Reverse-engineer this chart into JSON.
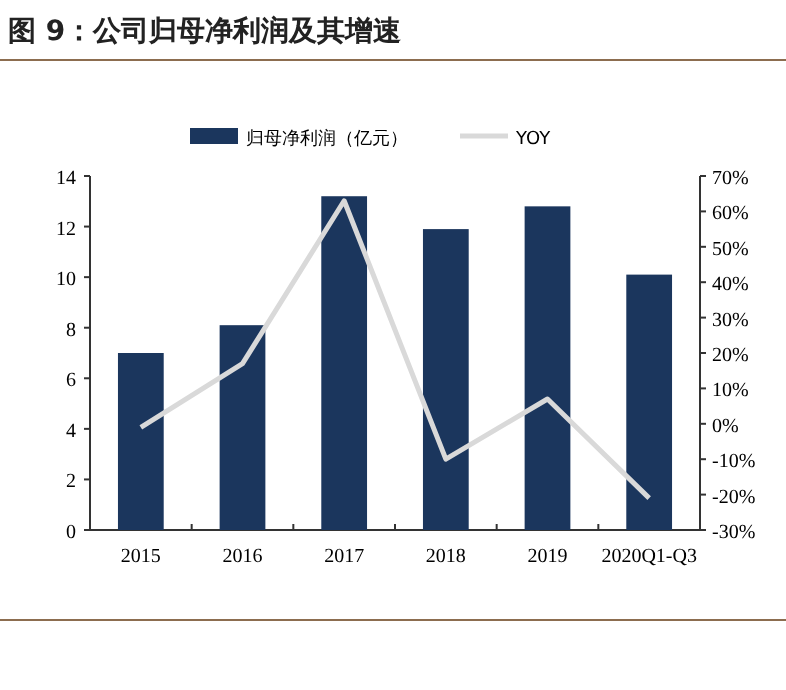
{
  "chart_data": {
    "type": "bar",
    "title": "图 9：公司归母净利润及其增速",
    "categories": [
      "2015",
      "2016",
      "2017",
      "2018",
      "2019",
      "2020Q1-Q3"
    ],
    "series": [
      {
        "name": "归母净利润（亿元）",
        "color": "#1b365d",
        "values": [
          7.0,
          8.1,
          13.2,
          11.9,
          12.8,
          10.1
        ]
      },
      {
        "name": "YOY",
        "type": "line",
        "axis": "y2",
        "color": "#d9d9d9",
        "values": [
          -1,
          17,
          63,
          -10,
          7,
          -21
        ]
      }
    ],
    "ylim": [
      0,
      14
    ],
    "yticks": [
      0,
      2,
      4,
      6,
      8,
      10,
      12,
      14
    ],
    "y2lim": [
      -30,
      70
    ],
    "y2ticks": [
      {
        "value": 70,
        "label": "70%"
      },
      {
        "value": 60,
        "label": "60%"
      },
      {
        "value": 50,
        "label": "50%"
      },
      {
        "value": 40,
        "label": "40%"
      },
      {
        "value": 30,
        "label": "30%"
      },
      {
        "value": 20,
        "label": "20%"
      },
      {
        "value": 10,
        "label": "10%"
      },
      {
        "value": 0,
        "label": "0%"
      },
      {
        "value": -10,
        "label": "-10%"
      },
      {
        "value": -20,
        "label": "-20%"
      },
      {
        "value": -30,
        "label": "-30%"
      }
    ],
    "legend": "top"
  }
}
